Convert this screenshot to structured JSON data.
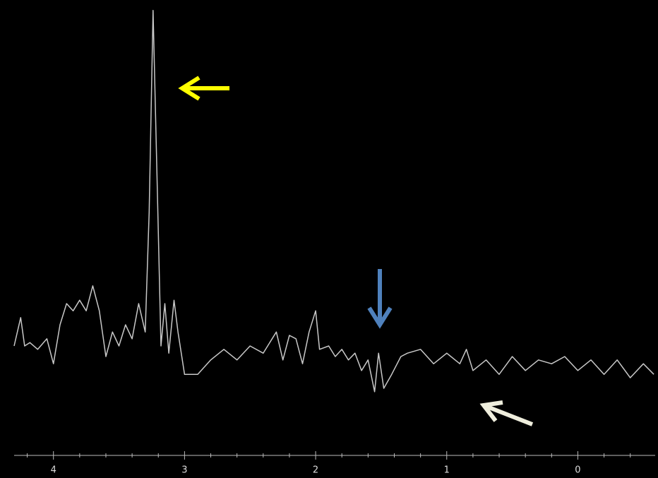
{
  "chart_data": {
    "type": "line",
    "x": [
      4.3,
      4.25,
      4.22,
      4.18,
      4.12,
      4.05,
      4.0,
      3.95,
      3.9,
      3.85,
      3.8,
      3.75,
      3.7,
      3.65,
      3.6,
      3.55,
      3.5,
      3.45,
      3.4,
      3.35,
      3.3,
      3.27,
      3.24,
      3.21,
      3.18,
      3.15,
      3.12,
      3.08,
      3.05,
      3.0,
      2.9,
      2.8,
      2.7,
      2.6,
      2.5,
      2.4,
      2.3,
      2.25,
      2.2,
      2.15,
      2.1,
      2.05,
      2.0,
      1.97,
      1.9,
      1.85,
      1.8,
      1.75,
      1.7,
      1.65,
      1.6,
      1.55,
      1.52,
      1.48,
      1.42,
      1.35,
      1.3,
      1.2,
      1.1,
      1.0,
      0.9,
      0.85,
      0.8,
      0.7,
      0.6,
      0.5,
      0.4,
      0.3,
      0.2,
      0.1,
      0.0,
      -0.1,
      -0.2,
      -0.3,
      -0.4,
      -0.5,
      -0.58
    ],
    "series": [
      {
        "color": "#c8c8c8",
        "values": [
          20,
          26.7,
          20,
          20.8,
          19.2,
          21.7,
          15.8,
          25,
          30,
          28.3,
          30.8,
          28.3,
          34.2,
          28.3,
          17.5,
          23.3,
          20,
          25,
          21.7,
          30,
          23.3,
          51.7,
          99.2,
          60,
          20,
          30,
          18.3,
          30.8,
          23.3,
          13.3,
          13.3,
          16.7,
          19.2,
          16.7,
          20,
          18.3,
          23.3,
          16.7,
          22.5,
          21.7,
          15.8,
          23.3,
          28.3,
          19.2,
          20,
          17.5,
          19.2,
          16.7,
          18.3,
          14.2,
          16.7,
          9.2,
          18.3,
          10,
          13.3,
          17.5,
          18.3,
          19.2,
          15.8,
          18.3,
          15.8,
          19.2,
          14.2,
          16.7,
          13.3,
          17.5,
          14.2,
          16.7,
          15.8,
          17.5,
          14.2,
          16.7,
          13.3,
          16.7,
          12.5,
          15.8,
          13.3
        ]
      }
    ],
    "xlim": [
      4.3,
      -0.59
    ],
    "xticks": [
      4,
      3,
      2,
      1,
      0
    ],
    "minor_xticks": [
      4.2,
      3.8,
      3.6,
      3.4,
      3.2,
      2.8,
      2.6,
      2.4,
      2.2,
      1.8,
      1.6,
      1.4,
      1.2,
      0.8,
      0.6,
      0.4,
      0.2,
      -0.2,
      -0.4
    ],
    "ylim": [
      0,
      100
    ]
  }
}
